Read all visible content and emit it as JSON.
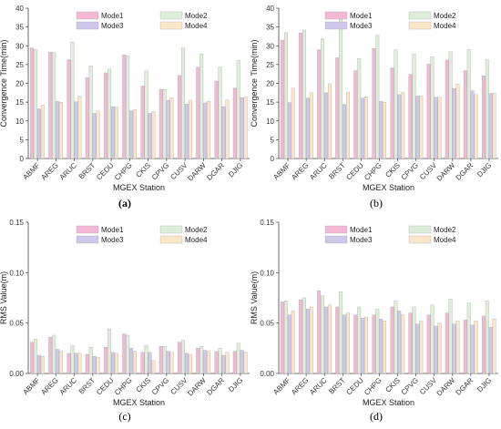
{
  "chart_data": [
    {
      "type": "bar",
      "panel_label": "(a)",
      "xlabel": "MGEX Station",
      "ylabel": "Convergence Time(min)",
      "ylim": [
        0,
        40
      ],
      "yticks": [
        "0",
        "5",
        "10",
        "15",
        "20",
        "25",
        "30",
        "35",
        "40"
      ],
      "legend_position": "top-right",
      "categories": [
        "ABMF",
        "AREG",
        "ARUC",
        "BRST",
        "CEDU",
        "CHPG",
        "CKIS",
        "CPVG",
        "CUSV",
        "DARW",
        "DGAR",
        "DJIG"
      ],
      "series": [
        {
          "name": "Mode1",
          "color": "#F4B8D4",
          "values": [
            29.4,
            28.3,
            26.3,
            21.5,
            22.8,
            27.6,
            19.3,
            18.4,
            22.1,
            24.3,
            20.6,
            18.7
          ]
        },
        {
          "name": "Mode2",
          "color": "#DDEFD8",
          "values": [
            29.0,
            28.2,
            31.0,
            24.7,
            23.8,
            27.3,
            23.3,
            18.4,
            29.4,
            27.8,
            24.3,
            26.1
          ]
        },
        {
          "name": "Mode3",
          "color": "#CFC8EC",
          "values": [
            13.2,
            15.2,
            15.1,
            12.0,
            13.8,
            12.7,
            12.0,
            15.5,
            14.5,
            14.8,
            13.8,
            16.2
          ]
        },
        {
          "name": "Mode4",
          "color": "#FCE6C8",
          "values": [
            14.2,
            15.0,
            16.6,
            12.7,
            13.7,
            13.0,
            12.5,
            16.2,
            15.5,
            15.2,
            15.6,
            16.3
          ]
        }
      ]
    },
    {
      "type": "bar",
      "panel_label": "(b)",
      "xlabel": "MGEX Station",
      "ylabel": "Convergence Time(min)",
      "ylim": [
        0,
        40
      ],
      "yticks": [
        "0",
        "5",
        "10",
        "15",
        "20",
        "25",
        "30",
        "35",
        "40"
      ],
      "legend_position": "top-right",
      "categories": [
        "ABMF",
        "AREG",
        "ARUC",
        "BRST",
        "CEDU",
        "CHPG",
        "CKIS",
        "CPVG",
        "CUSV",
        "DARW",
        "DGAR",
        "DJIG"
      ],
      "series": [
        {
          "name": "Mode1",
          "color": "#F4B8D4",
          "values": [
            31.5,
            33.4,
            28.9,
            26.8,
            23.4,
            29.3,
            24.1,
            22.4,
            25.1,
            26.2,
            23.4,
            22.0
          ]
        },
        {
          "name": "Mode2",
          "color": "#DDEFD8",
          "values": [
            33.5,
            34.2,
            31.8,
            37.0,
            26.6,
            32.8,
            28.9,
            27.8,
            27.1,
            28.4,
            29.0,
            26.3
          ]
        },
        {
          "name": "Mode3",
          "color": "#CFC8EC",
          "values": [
            14.9,
            16.1,
            17.5,
            14.4,
            16.1,
            15.2,
            17.0,
            16.6,
            16.3,
            18.6,
            18.0,
            17.3
          ]
        },
        {
          "name": "Mode4",
          "color": "#FCE6C8",
          "values": [
            18.7,
            17.5,
            19.9,
            17.7,
            16.4,
            15.0,
            17.6,
            16.6,
            16.3,
            19.8,
            17.0,
            17.4
          ]
        }
      ]
    },
    {
      "type": "bar",
      "panel_label": "(c)",
      "xlabel": "MGEX Station",
      "ylabel": "RMS Value(m)",
      "ylim": [
        0,
        0.15
      ],
      "yticks": [
        "0.00",
        "0.05",
        "0.10",
        "0.15"
      ],
      "legend_position": "top-right",
      "categories": [
        "ABMF",
        "AREG",
        "ARUC",
        "BRST",
        "CEDU",
        "CHPG",
        "CKIS",
        "CPVG",
        "CUSV",
        "DARW",
        "DGAR",
        "DJIG"
      ],
      "series": [
        {
          "name": "Mode1",
          "color": "#F4B8D4",
          "values": [
            0.031,
            0.036,
            0.02,
            0.019,
            0.026,
            0.039,
            0.021,
            0.027,
            0.031,
            0.025,
            0.022,
            0.022
          ]
        },
        {
          "name": "Mode2",
          "color": "#DDEFD8",
          "values": [
            0.034,
            0.038,
            0.028,
            0.026,
            0.044,
            0.038,
            0.028,
            0.027,
            0.033,
            0.027,
            0.025,
            0.03
          ]
        },
        {
          "name": "Mode3",
          "color": "#CFC8EC",
          "values": [
            0.018,
            0.024,
            0.02,
            0.017,
            0.021,
            0.025,
            0.021,
            0.022,
            0.02,
            0.023,
            0.018,
            0.023
          ]
        },
        {
          "name": "Mode4",
          "color": "#FCE6C8",
          "values": [
            0.017,
            0.022,
            0.02,
            0.016,
            0.02,
            0.022,
            0.013,
            0.021,
            0.019,
            0.022,
            0.021,
            0.021
          ]
        }
      ]
    },
    {
      "type": "bar",
      "panel_label": "(d)",
      "xlabel": "MGEX Station",
      "ylabel": "RMS Value(m)",
      "ylim": [
        0,
        0.15
      ],
      "yticks": [
        "0.00",
        "0.05",
        "0.10",
        "0.15"
      ],
      "legend_position": "top-right",
      "categories": [
        "ABMF",
        "AREG",
        "ARUC",
        "BRST",
        "CEDU",
        "CHPG",
        "CKIS",
        "CPVG",
        "CUSV",
        "DARW",
        "DGAR",
        "DJIG"
      ],
      "series": [
        {
          "name": "Mode1",
          "color": "#F4B8D4",
          "values": [
            0.071,
            0.073,
            0.082,
            0.066,
            0.058,
            0.058,
            0.066,
            0.06,
            0.058,
            0.06,
            0.053,
            0.057
          ]
        },
        {
          "name": "Mode2",
          "color": "#DDEFD8",
          "values": [
            0.072,
            0.075,
            0.077,
            0.081,
            0.066,
            0.064,
            0.072,
            0.066,
            0.068,
            0.074,
            0.07,
            0.072
          ]
        },
        {
          "name": "Mode3",
          "color": "#CFC8EC",
          "values": [
            0.058,
            0.064,
            0.066,
            0.058,
            0.055,
            0.054,
            0.062,
            0.049,
            0.047,
            0.049,
            0.048,
            0.046
          ]
        },
        {
          "name": "Mode4",
          "color": "#FCE6C8",
          "values": [
            0.062,
            0.066,
            0.068,
            0.06,
            0.056,
            0.052,
            0.058,
            0.052,
            0.05,
            0.052,
            0.052,
            0.054
          ]
        }
      ]
    }
  ]
}
